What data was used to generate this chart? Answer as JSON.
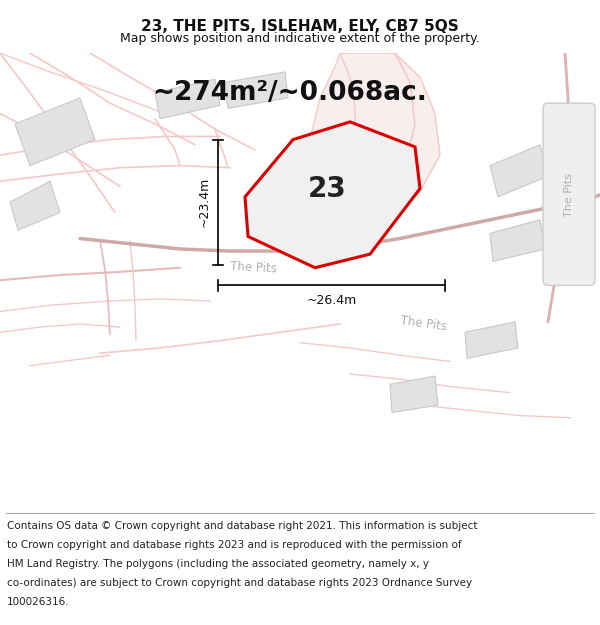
{
  "title_line1": "23, THE PITS, ISLEHAM, ELY, CB7 5QS",
  "title_line2": "Map shows position and indicative extent of the property.",
  "area_text": "~274m²/~0.068ac.",
  "label_number": "23",
  "dim_height": "~23.4m",
  "dim_width": "~26.4m",
  "footer_lines": [
    "Contains OS data © Crown copyright and database right 2021. This information is subject",
    "to Crown copyright and database rights 2023 and is reproduced with the permission of",
    "HM Land Registry. The polygons (including the associated geometry, namely x, y",
    "co-ordinates) are subject to Crown copyright and database rights 2023 Ordnance Survey",
    "100026316."
  ],
  "map_bg": "#ffffff",
  "road_color": "#f5c8c8",
  "road_fill": "#f0e0e0",
  "plot_edge": "#dd0000",
  "plot_fill": "#f0f0f0",
  "building_face": "#e2e2e2",
  "building_edge": "#c8c8c8",
  "road_label_color": "#b0b0b0",
  "dim_color": "#111111",
  "title_fontsize": 11,
  "subtitle_fontsize": 9,
  "area_fontsize": 19,
  "label_fontsize": 20,
  "dim_fontsize": 9,
  "footer_fontsize": 7.5
}
